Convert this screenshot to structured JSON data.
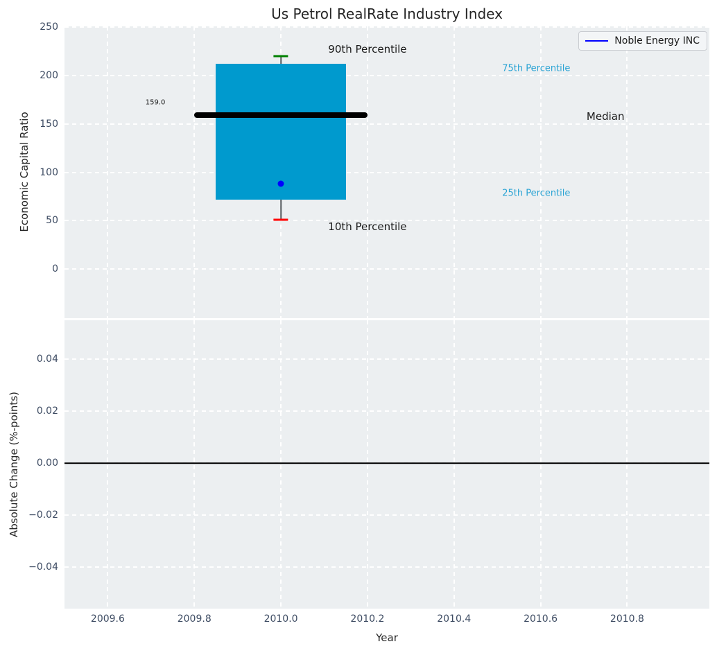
{
  "title": "Us Petrol RealRate Industry Index",
  "colors": {
    "axes_background": "#ECEFF1",
    "grid": "#ffffff",
    "box_fill": "#009ACE",
    "median_line": "#000000",
    "whisker": "#555a5e",
    "cap_upper": "#008000",
    "cap_lower": "#ff0000",
    "company_point": "#0000ff",
    "percentile_text": "#29A3D4",
    "tick_text": "#3e4c63",
    "annotation_text": "#1a1a1a",
    "zero_line": "#000000"
  },
  "legend": {
    "label": "Noble Energy INC",
    "line_color": "#0000ff",
    "position": "upper right"
  },
  "chart_data": [
    {
      "type": "boxplot",
      "title": "Us Petrol RealRate Industry Index",
      "ylabel": "Economic Capital Ratio",
      "xlim": [
        2009.5,
        2010.99
      ],
      "ylim": [
        -51,
        251
      ],
      "grid": true,
      "xticks": {
        "values": [
          2009.6,
          2009.8,
          2010.0,
          2010.2,
          2010.4,
          2010.6,
          2010.8
        ],
        "labels": []
      },
      "yticks": {
        "values": [
          0,
          50,
          100,
          150,
          200,
          250
        ],
        "labels": [
          "0",
          "50",
          "100",
          "150",
          "200",
          "250"
        ]
      },
      "box": {
        "x_center": 2010.0,
        "p10": 51,
        "p25": 72,
        "median": 159,
        "p75": 212,
        "p90": 220,
        "box_halfwidth": 0.15,
        "median_halfwidth": 0.2,
        "cap_halfwidth": 0.017
      },
      "company_point": {
        "label": "Noble Energy INC",
        "x": 2010.0,
        "y": 88,
        "color": "#0000ff"
      },
      "annotations": [
        {
          "name": "90th-percentile",
          "text": "90th Percentile",
          "x": 2010.2,
          "y": 227,
          "color": "#1a1a1a",
          "size": 15
        },
        {
          "name": "10th-percentile",
          "text": "10th Percentile",
          "x": 2010.2,
          "y": 44,
          "color": "#1a1a1a",
          "size": 15
        },
        {
          "name": "median-value",
          "text": "159.0",
          "x": 2009.71,
          "y": 172,
          "color": "#1a1a1a",
          "size": 10
        },
        {
          "name": "75th-percentile",
          "text": "75th Percentile",
          "x": 2010.59,
          "y": 207,
          "color": "#29A3D4",
          "size": 13
        },
        {
          "name": "25th-percentile",
          "text": "25th Percentile",
          "x": 2010.59,
          "y": 78,
          "color": "#29A3D4",
          "size": 13
        },
        {
          "name": "median-label",
          "text": "Median",
          "x": 2010.75,
          "y": 158,
          "color": "#1a1a1a",
          "size": 15
        }
      ]
    },
    {
      "type": "line",
      "ylabel": "Absolute Change (%-points)",
      "xlabel": "Year",
      "xlim": [
        2009.5,
        2010.99
      ],
      "ylim": [
        -0.056,
        0.055
      ],
      "grid": true,
      "xticks": {
        "values": [
          2009.6,
          2009.8,
          2010.0,
          2010.2,
          2010.4,
          2010.6,
          2010.8
        ],
        "labels": [
          "2009.6",
          "2009.8",
          "2010.0",
          "2010.2",
          "2010.4",
          "2010.6",
          "2010.8"
        ]
      },
      "yticks": {
        "values": [
          -0.04,
          -0.02,
          0,
          0.02,
          0.04
        ],
        "labels": [
          "−0.04",
          "−0.02",
          "0.00",
          "0.02",
          "0.04"
        ]
      },
      "series": [],
      "reference_line_y": 0
    }
  ]
}
